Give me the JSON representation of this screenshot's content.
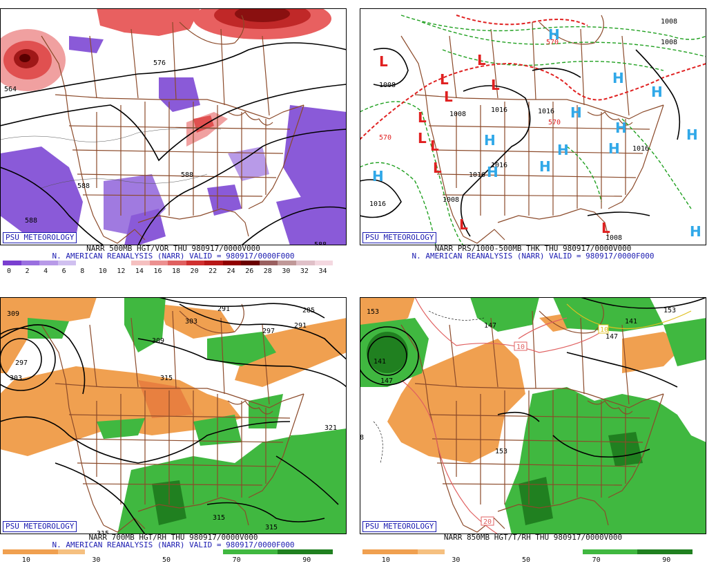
{
  "panels": [
    {
      "id": "p1",
      "badge": "PSU METEOROLOGY",
      "line1": "NARR 500MB HGT/VOR THU 980917/0000V000",
      "line2": "N. AMERICAN REANALYSIS (NARR) VALID = 980917/0000F000",
      "contour_labels": [
        "564",
        "576",
        "588",
        "588",
        "588",
        "588"
      ],
      "colorbar": {
        "colors": [
          "#7a3fd0",
          "#9a70e0",
          "#b89ae8",
          "#d0c0f0",
          "#ffffff",
          "#ffffff",
          "#ffffff",
          "#f5c0c0",
          "#ec9090",
          "#e06060",
          "#d03030",
          "#b81818",
          "#900000",
          "#6a0000",
          "#9a6060",
          "#c09898",
          "#e0c0c8",
          "#f4d8e0"
        ],
        "ticks": [
          "0",
          "2",
          "4",
          "6",
          "8",
          "10",
          "12",
          "14",
          "16",
          "18",
          "20",
          "22",
          "24",
          "26",
          "28",
          "30",
          "32",
          "34"
        ]
      }
    },
    {
      "id": "p2",
      "badge": "PSU METEOROLOGY",
      "line1": "NARR PRS/1000-500MB THK THU 980917/0000V000",
      "line2": "N. AMERICAN REANALYSIS (NARR) VALID = 980917/0000F000",
      "contour_labels": [
        "1008",
        "1008",
        "1016",
        "1016",
        "1016",
        "1016",
        "1016",
        "1008",
        "1008",
        "570",
        "570",
        "570",
        "1008",
        "1016",
        "1008"
      ],
      "highs": [
        "H",
        "H",
        "H",
        "H",
        "H",
        "H",
        "H",
        "H",
        "H",
        "H",
        "H",
        "H",
        "H"
      ],
      "lows": [
        "L",
        "L",
        "L",
        "L",
        "L",
        "L",
        "L",
        "L",
        "L",
        "L",
        "L"
      ]
    },
    {
      "id": "p3",
      "badge": "PSU METEOROLOGY",
      "line1": "NARR 700MB HGT/RH THU 980917/0000V000",
      "line2": "N. AMERICAN REANALYSIS (NARR) VALID = 980917/0000F000",
      "contour_labels": [
        "309",
        "297",
        "303",
        "291",
        "285",
        "291",
        "297",
        "303",
        "309",
        "315",
        "321",
        "315",
        "315",
        "315"
      ],
      "colorbar": {
        "colors": [
          "#f0a050",
          "#f0a050",
          "#f5c080",
          "#ffffff",
          "#ffffff",
          "#ffffff",
          "#ffffff",
          "#ffffff",
          "#40b840",
          "#40b840",
          "#208020",
          "#208020"
        ],
        "ticks": [
          "10",
          "30",
          "50",
          "70",
          "90"
        ]
      }
    },
    {
      "id": "p4",
      "badge": "PSU METEOROLOGY",
      "line1": "NARR 850MB HGT/T/RH THU 980917/0000V000",
      "line2": "",
      "contour_labels": [
        "153",
        "147",
        "141",
        "147",
        "153",
        "141",
        "147",
        "153",
        "10",
        "10",
        "20",
        "8"
      ],
      "colorbar": {
        "colors": [
          "#f0a050",
          "#f0a050",
          "#f5c080",
          "#ffffff",
          "#ffffff",
          "#ffffff",
          "#ffffff",
          "#ffffff",
          "#40b840",
          "#40b840",
          "#208020",
          "#208020"
        ],
        "ticks": [
          "10",
          "30",
          "50",
          "70",
          "90"
        ]
      }
    }
  ],
  "colors": {
    "border": "#8b4a2a",
    "contour": "#000000",
    "badge": "#1a1ab0",
    "high": "#30a8e8",
    "low": "#e02020",
    "thickness_cold": "#20a020",
    "thickness_warm": "#e02020",
    "orange": "#f0a050",
    "green": "#40b840",
    "dark_green": "#208020",
    "purple": "#8a5ad8",
    "red": "#e04848"
  }
}
